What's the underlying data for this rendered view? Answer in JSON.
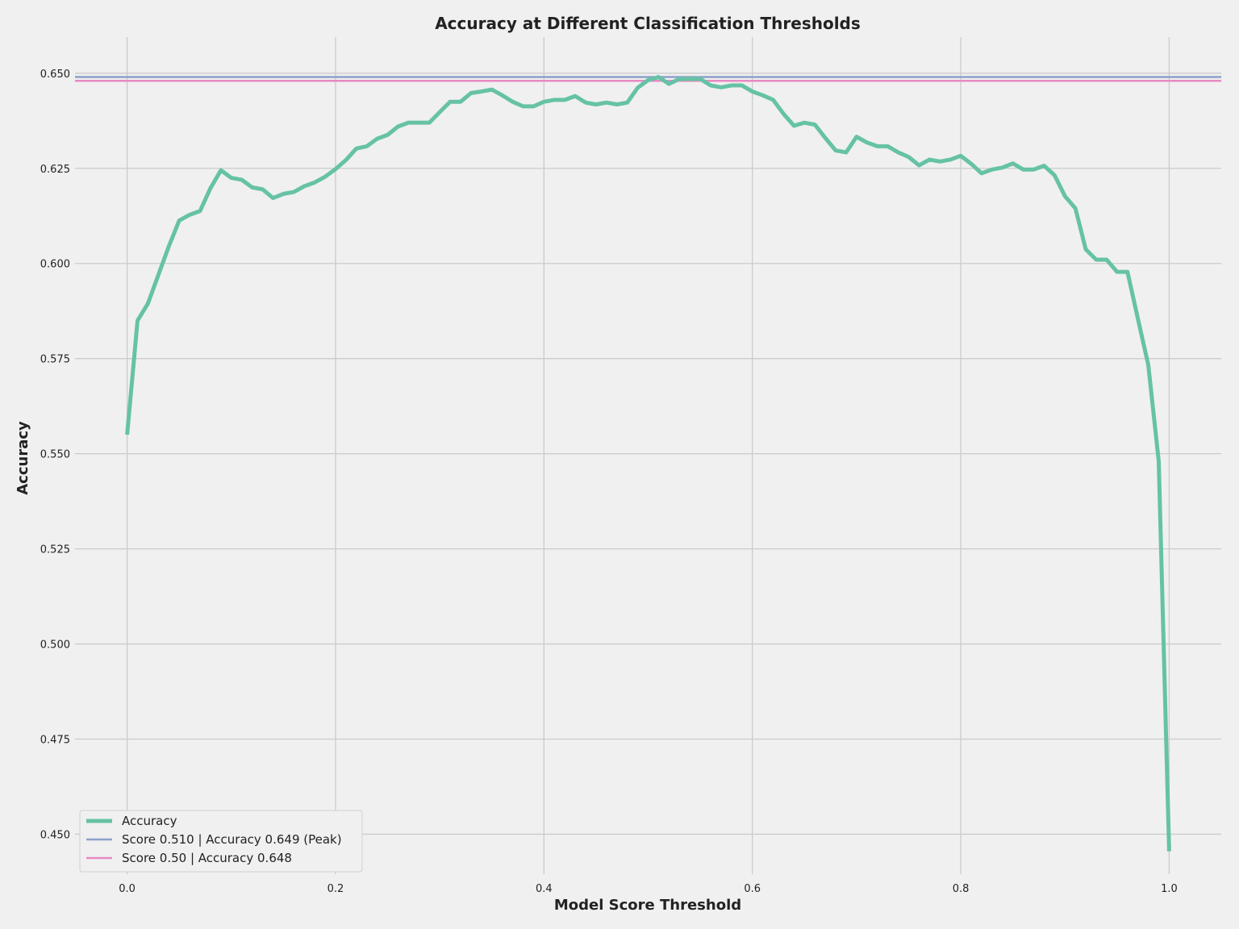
{
  "chart_data": {
    "type": "line",
    "title": "Accuracy at Different Classification Thresholds",
    "xlabel": "Model Score Threshold",
    "ylabel": "Accuracy",
    "xlim": [
      -0.05,
      1.05
    ],
    "ylim": [
      0.4395,
      0.6595
    ],
    "xticks": [
      "0.0",
      "0.2",
      "0.4",
      "0.6",
      "0.8",
      "1.0"
    ],
    "yticks": [
      "0.450",
      "0.475",
      "0.500",
      "0.525",
      "0.550",
      "0.575",
      "0.600",
      "0.625",
      "0.650"
    ],
    "grid": true,
    "legend_position": "lower-left",
    "series": [
      {
        "name": "Accuracy",
        "color": "#66c2a5",
        "x": [
          0.0,
          0.01,
          0.02,
          0.03,
          0.04,
          0.05,
          0.06,
          0.07,
          0.08,
          0.09,
          0.1,
          0.11,
          0.12,
          0.13,
          0.14,
          0.15,
          0.16,
          0.17,
          0.18,
          0.19,
          0.2,
          0.21,
          0.22,
          0.23,
          0.24,
          0.25,
          0.26,
          0.27,
          0.28,
          0.29,
          0.3,
          0.31,
          0.32,
          0.33,
          0.34,
          0.35,
          0.36,
          0.37,
          0.38,
          0.39,
          0.4,
          0.41,
          0.42,
          0.43,
          0.44,
          0.45,
          0.46,
          0.47,
          0.48,
          0.49,
          0.5,
          0.51,
          0.52,
          0.53,
          0.54,
          0.55,
          0.56,
          0.57,
          0.58,
          0.59,
          0.6,
          0.61,
          0.62,
          0.63,
          0.64,
          0.65,
          0.66,
          0.67,
          0.68,
          0.69,
          0.7,
          0.71,
          0.72,
          0.73,
          0.74,
          0.75,
          0.76,
          0.77,
          0.78,
          0.79,
          0.8,
          0.81,
          0.82,
          0.83,
          0.84,
          0.85,
          0.86,
          0.87,
          0.88,
          0.89,
          0.9,
          0.91,
          0.92,
          0.93,
          0.94,
          0.95,
          0.96,
          0.97,
          0.98,
          0.99,
          1.0
        ],
        "y": [
          0.555,
          0.585,
          0.5895,
          0.597,
          0.6045,
          0.6113,
          0.6128,
          0.6138,
          0.6198,
          0.6245,
          0.6225,
          0.622,
          0.62,
          0.6195,
          0.6172,
          0.6183,
          0.6188,
          0.6203,
          0.6213,
          0.6228,
          0.6248,
          0.6272,
          0.6302,
          0.6308,
          0.6328,
          0.6338,
          0.636,
          0.637,
          0.637,
          0.637,
          0.6398,
          0.6425,
          0.6425,
          0.6448,
          0.6452,
          0.6457,
          0.6442,
          0.6425,
          0.6413,
          0.6413,
          0.6425,
          0.643,
          0.643,
          0.644,
          0.6423,
          0.6418,
          0.6423,
          0.6418,
          0.6423,
          0.6462,
          0.6482,
          0.649,
          0.6472,
          0.6485,
          0.6485,
          0.6485,
          0.6468,
          0.6463,
          0.6468,
          0.6468,
          0.6452,
          0.6442,
          0.643,
          0.6393,
          0.6362,
          0.637,
          0.6365,
          0.633,
          0.6297,
          0.6292,
          0.6333,
          0.6318,
          0.6308,
          0.6308,
          0.6292,
          0.628,
          0.6258,
          0.6273,
          0.6268,
          0.6273,
          0.6283,
          0.6262,
          0.6237,
          0.6247,
          0.6252,
          0.6263,
          0.6247,
          0.6247,
          0.6257,
          0.6232,
          0.6177,
          0.6145,
          0.6037,
          0.601,
          0.601,
          0.5978,
          0.5978,
          0.5855,
          0.5733,
          0.548,
          0.4455
        ]
      },
      {
        "name": "Score 0.510 | Accuracy 0.649 (Peak)",
        "color": "#8da0cb",
        "y_constant": 0.649
      },
      {
        "name": "Score 0.50 | Accuracy 0.648",
        "color": "#e78ac3",
        "y_constant": 0.648
      }
    ]
  }
}
